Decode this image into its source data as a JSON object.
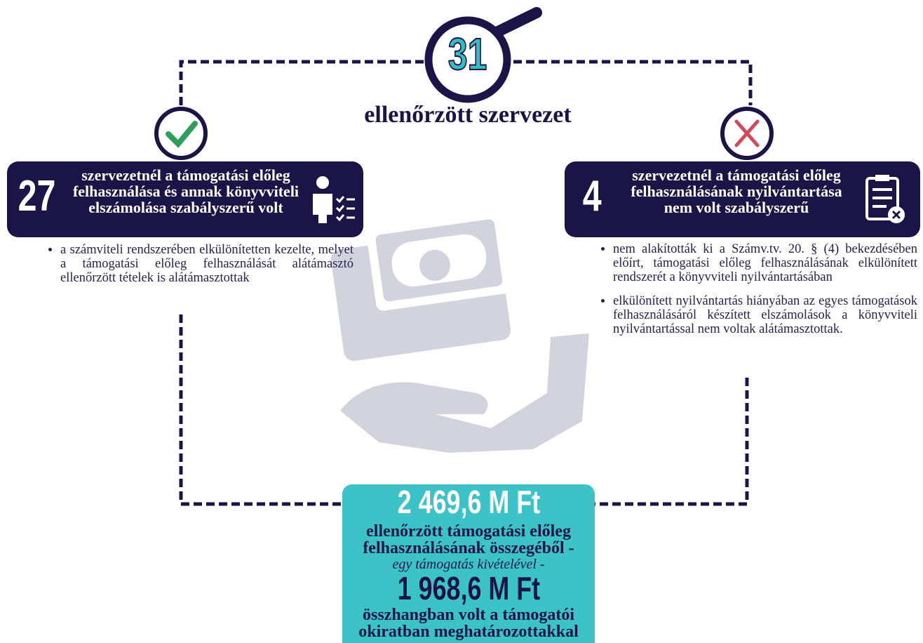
{
  "header": {
    "count": 31,
    "label": "ellenőrzött szervezet"
  },
  "left": {
    "count": 27,
    "title": "szervezetnél a támogatási előleg felhasználása és annak könyvviteli elszámolása szabályszerű volt",
    "bullets": [
      "a számviteli rendszerében elkülönítetten kezelte, melyet a támogatási előleg felhasználását alátámasztó ellenőrzött tételek is alátámasztottak"
    ]
  },
  "right": {
    "count": 4,
    "title": "szervezetnél a támogatási előleg felhasználásának nyilvántartása nem volt szabályszerű",
    "bullets": [
      "nem alakították ki a Számv.tv. 20. § (4) bekezdésében előírt, támogatási előleg felhasználásának elkülönített rendszerét a könyvviteli nyilvántartásában",
      "elkülönített nyilvántartás hiányában az egyes támogatások felhasználásáról készített elszámolások a könyvviteli nyilvántartással nem voltak alátámasztottak."
    ]
  },
  "summary": {
    "total": "2 469,6 M Ft",
    "total_label": "ellenőrzött támogatási előleg felhasználásának összegéből -",
    "note": "egy támogatás kivételével -",
    "matched": "1 968,6 M Ft",
    "matched_label": "összhangban volt a támogatói okiratban meghatározottakkal"
  }
}
